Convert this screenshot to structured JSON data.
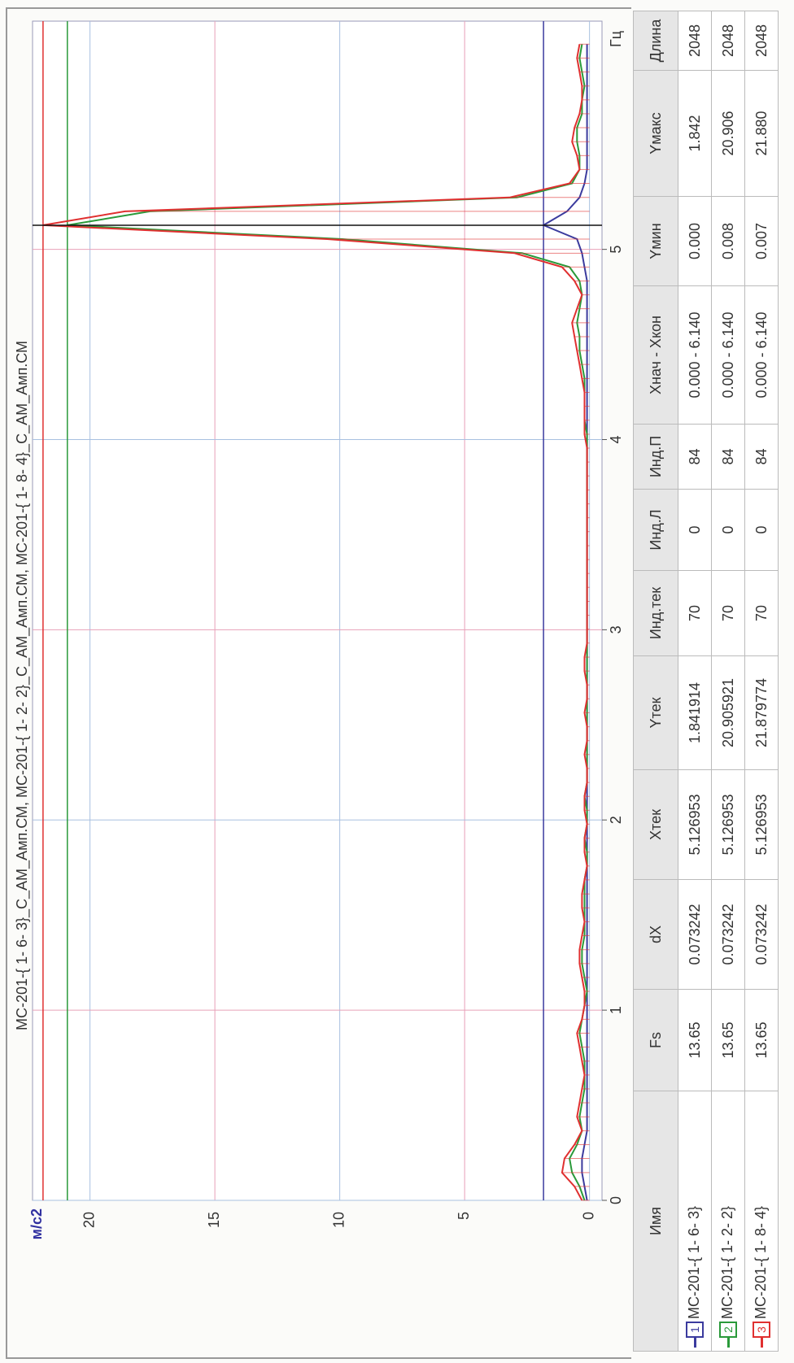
{
  "chart_data": {
    "type": "line",
    "title": "МС-201-{ 1- 6- 3}_С_АМ_Амп.СМ, МС-201-{ 1- 2- 2}_С_АМ_Амп.СМ, МС-201-{ 1- 8- 4}_С_АМ_Амп.СМ",
    "x_label": "Гц",
    "y_label": "м/с2",
    "x": [
      0.0,
      0.073,
      0.146,
      0.22,
      0.293,
      0.366,
      0.439,
      0.513,
      0.586,
      0.659,
      0.732,
      0.806,
      0.879,
      0.952,
      1.025,
      1.099,
      1.172,
      1.245,
      1.318,
      1.392,
      1.465,
      1.538,
      1.611,
      1.685,
      1.758,
      1.831,
      1.904,
      1.978,
      2.051,
      2.124,
      2.197,
      2.271,
      2.344,
      2.417,
      2.49,
      2.564,
      2.637,
      2.71,
      2.783,
      2.856,
      2.93,
      3.003,
      3.076,
      3.149,
      3.223,
      3.296,
      3.369,
      3.442,
      3.516,
      3.589,
      3.662,
      3.735,
      3.809,
      3.882,
      3.955,
      4.028,
      4.102,
      4.175,
      4.248,
      4.321,
      4.395,
      4.468,
      4.541,
      4.614,
      4.688,
      4.761,
      4.834,
      4.907,
      4.98,
      5.054,
      5.127,
      5.2,
      5.273,
      5.347,
      5.42,
      5.493,
      5.566,
      5.64,
      5.713,
      5.786,
      5.859,
      5.933,
      6.006,
      6.079
    ],
    "series": [
      {
        "name": "МС-201-{ 1- 6- 3}",
        "color": "#3b3b9e",
        "values": [
          0.1,
          0.2,
          0.3,
          0.3,
          0.2,
          0.1,
          0.1,
          0.1,
          0.1,
          0.1,
          0.1,
          0.1,
          0.1,
          0.1,
          0.1,
          0.1,
          0.1,
          0.1,
          0.1,
          0.1,
          0.1,
          0.1,
          0.1,
          0.1,
          0.1,
          0.1,
          0.1,
          0.1,
          0.1,
          0.1,
          0.1,
          0.1,
          0.1,
          0.1,
          0.1,
          0.1,
          0.1,
          0.1,
          0.1,
          0.1,
          0.1,
          0.1,
          0.1,
          0.1,
          0.1,
          0.1,
          0.1,
          0.1,
          0.1,
          0.1,
          0.1,
          0.1,
          0.1,
          0.1,
          0.1,
          0.1,
          0.1,
          0.1,
          0.1,
          0.1,
          0.1,
          0.1,
          0.1,
          0.1,
          0.1,
          0.1,
          0.1,
          0.2,
          0.3,
          0.5,
          1.842,
          0.9,
          0.4,
          0.2,
          0.1,
          0.1,
          0.1,
          0.1,
          0.1,
          0.1,
          0.1,
          0.1,
          0.1,
          0.1
        ]
      },
      {
        "name": "МС-201-{ 1- 2- 2}",
        "color": "#2a9a3a",
        "values": [
          0.2,
          0.4,
          0.7,
          0.8,
          0.5,
          0.3,
          0.4,
          0.3,
          0.2,
          0.2,
          0.2,
          0.3,
          0.4,
          0.3,
          0.2,
          0.1,
          0.2,
          0.3,
          0.3,
          0.2,
          0.2,
          0.2,
          0.2,
          0.2,
          0.1,
          0.1,
          0.2,
          0.1,
          0.1,
          0.2,
          0.1,
          0.1,
          0.1,
          0.1,
          0.1,
          0.1,
          0.1,
          0.1,
          0.1,
          0.1,
          0.1,
          0.1,
          0.1,
          0.1,
          0.1,
          0.1,
          0.1,
          0.1,
          0.1,
          0.1,
          0.1,
          0.1,
          0.1,
          0.1,
          0.1,
          0.1,
          0.2,
          0.2,
          0.2,
          0.2,
          0.3,
          0.4,
          0.4,
          0.5,
          0.4,
          0.3,
          0.4,
          0.8,
          2.7,
          9.9,
          20.906,
          17.6,
          2.9,
          0.7,
          0.4,
          0.4,
          0.5,
          0.5,
          0.3,
          0.3,
          0.2,
          0.3,
          0.4,
          0.3
        ]
      },
      {
        "name": "МС-201-{ 1- 8- 4}",
        "color": "#e03030",
        "stems": true,
        "values": [
          0.3,
          0.6,
          1.1,
          1.0,
          0.6,
          0.3,
          0.5,
          0.4,
          0.3,
          0.2,
          0.3,
          0.4,
          0.5,
          0.3,
          0.2,
          0.2,
          0.3,
          0.4,
          0.4,
          0.3,
          0.2,
          0.3,
          0.3,
          0.2,
          0.1,
          0.2,
          0.2,
          0.1,
          0.2,
          0.2,
          0.1,
          0.1,
          0.2,
          0.1,
          0.1,
          0.2,
          0.1,
          0.1,
          0.2,
          0.2,
          0.1,
          0.1,
          0.1,
          0.1,
          0.1,
          0.1,
          0.1,
          0.1,
          0.1,
          0.1,
          0.1,
          0.1,
          0.1,
          0.1,
          0.1,
          0.2,
          0.2,
          0.2,
          0.2,
          0.3,
          0.4,
          0.5,
          0.6,
          0.7,
          0.5,
          0.3,
          0.6,
          1.1,
          3.0,
          10.5,
          21.88,
          18.6,
          3.2,
          0.8,
          0.4,
          0.5,
          0.7,
          0.6,
          0.4,
          0.3,
          0.3,
          0.4,
          0.5,
          0.4
        ]
      }
    ],
    "cursor": {
      "x": 5.127
    },
    "xlim": [
      0,
      6.2
    ],
    "xticks": [
      0,
      1,
      2,
      3,
      4,
      5
    ],
    "ylim": [
      -0.5,
      22.3
    ],
    "yticks": [
      0,
      5,
      10,
      15,
      20
    ],
    "grid": true
  },
  "table": {
    "header": [
      "Имя",
      "Fs",
      "dX",
      "Xтек",
      "Yтек",
      "Инд.тек",
      "Инд.Л",
      "Инд.П",
      "Xнач - Xкон",
      "Yмин",
      "Yмакс",
      "Длина"
    ],
    "markers": [
      "1",
      "2",
      "3"
    ],
    "rows": [
      [
        "13.65",
        "0.073242",
        "5.126953",
        "1.841914",
        "70",
        "0",
        "84",
        "0.000 - 6.140",
        "0.000",
        "1.842",
        "2048"
      ],
      [
        "13.65",
        "0.073242",
        "5.126953",
        "20.905921",
        "70",
        "0",
        "84",
        "0.000 - 6.140",
        "0.008",
        "20.906",
        "2048"
      ],
      [
        "13.65",
        "0.073242",
        "5.126953",
        "21.879774",
        "70",
        "0",
        "84",
        "0.000 - 6.140",
        "0.007",
        "21.880",
        "2048"
      ]
    ]
  }
}
